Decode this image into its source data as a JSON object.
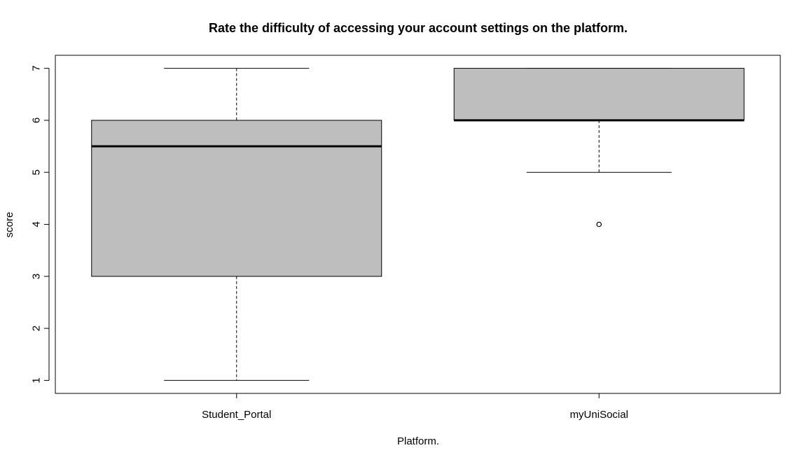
{
  "chart_data": {
    "type": "boxplot",
    "title": "Rate the difficulty of accessing your account settings on the platform.",
    "xlabel": "Platform.",
    "ylabel": "score",
    "ylim": [
      0.75,
      7.25
    ],
    "yticks": [
      1,
      2,
      3,
      4,
      5,
      6,
      7
    ],
    "categories": [
      "Student_Portal",
      "myUniSocial"
    ],
    "boxes": [
      {
        "category": "Student_Portal",
        "whisker_low": 1,
        "q1": 3,
        "median": 5.5,
        "q3": 6,
        "whisker_high": 7,
        "outliers": []
      },
      {
        "category": "myUniSocial",
        "whisker_low": 5,
        "q1": 6,
        "median": 6,
        "q3": 7,
        "whisker_high": 7,
        "outliers": [
          4
        ]
      }
    ],
    "colors": {
      "box_fill": "#bebebe",
      "line": "#000000"
    },
    "grid": false,
    "legend": "none"
  }
}
